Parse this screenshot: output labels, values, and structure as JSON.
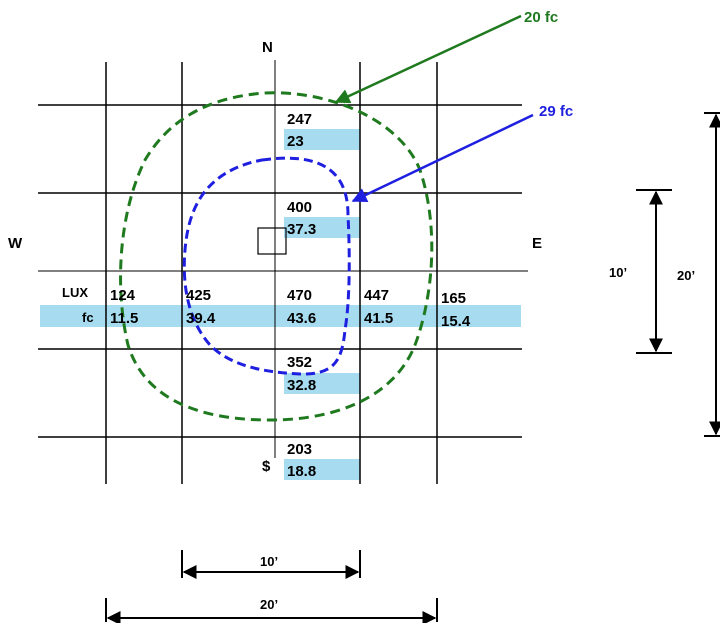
{
  "colors": {
    "grid": "#000000",
    "highlight": "#a7dcf0",
    "contour_20": "#1f7a1f",
    "contour_29": "#1f1fe0"
  },
  "compass": {
    "north": "N",
    "south": "$",
    "west": "W",
    "east": "E"
  },
  "row_labels": {
    "lux": "LUX",
    "fc": "fc"
  },
  "contours": {
    "outer": {
      "label": "20 fc"
    },
    "inner": {
      "label": "29 fc"
    }
  },
  "readings": {
    "top": {
      "lux": "247",
      "fc": "23"
    },
    "upper": {
      "lux": "400",
      "fc": "37.3"
    },
    "center": {
      "lux": "470",
      "fc": "43.6"
    },
    "lower": {
      "lux": "352",
      "fc": "32.8"
    },
    "bottom": {
      "lux": "203",
      "fc": "18.8"
    },
    "w1": {
      "lux": "124",
      "fc": "11.5"
    },
    "w2": {
      "lux": "425",
      "fc": "39.4"
    },
    "e1": {
      "lux": "447",
      "fc": "41.5"
    },
    "e2": {
      "lux": "165",
      "fc": "15.4"
    }
  },
  "dimensions": {
    "h_short": "10’",
    "h_long": "20’",
    "v_short": "10’",
    "v_long": "20’"
  }
}
